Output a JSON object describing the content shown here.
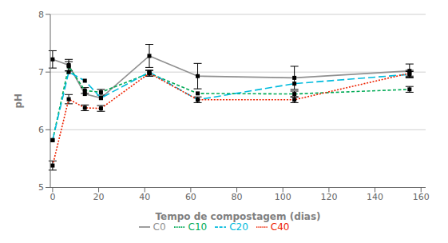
{
  "chart_data": {
    "type": "line",
    "xlabel": "Tempo de compostagem (dias)",
    "ylabel": "pH",
    "x": [
      0,
      7,
      14,
      21,
      42,
      63,
      105,
      155
    ],
    "series": [
      {
        "name": "C0",
        "color": "#909090",
        "line_style": "solid",
        "marker": "square",
        "values": [
          7.22,
          7.12,
          6.62,
          6.55,
          7.28,
          6.93,
          6.9,
          7.02
        ],
        "errors": [
          0.15,
          0.1,
          0.0,
          0.0,
          0.2,
          0.22,
          0.2,
          0.12
        ]
      },
      {
        "name": "C10",
        "color": "#00aa55",
        "line_style": "dashed",
        "marker": "square",
        "values": [
          5.82,
          7.1,
          6.68,
          6.65,
          6.98,
          6.63,
          6.62,
          6.7
        ],
        "errors": [
          0.0,
          0.08,
          0.05,
          0.05,
          0.05,
          0.0,
          0.05,
          0.05
        ]
      },
      {
        "name": "C20",
        "color": "#00bbdd",
        "line_style": "long_dashed",
        "marker": "square",
        "values": [
          5.82,
          7.0,
          6.85,
          6.55,
          7.0,
          6.52,
          6.8,
          6.96
        ],
        "errors": [
          0.0,
          0.0,
          0.0,
          0.0,
          0.0,
          0.0,
          0.0,
          0.05
        ]
      },
      {
        "name": "C40",
        "color": "#ee2200",
        "line_style": "dotted",
        "marker": "square",
        "values": [
          5.38,
          6.53,
          6.38,
          6.37,
          6.98,
          6.52,
          6.52,
          6.98
        ],
        "errors": [
          0.08,
          0.08,
          0.05,
          0.05,
          0.05,
          0.05,
          0.05,
          0.05
        ]
      }
    ],
    "xlim": [
      -1,
      162
    ],
    "ylim": [
      5,
      8
    ],
    "xticks": [
      0,
      20,
      40,
      60,
      80,
      100,
      120,
      140,
      160
    ],
    "yticks": [
      5,
      6,
      7,
      8
    ],
    "grid": "y",
    "legend": "bottom"
  }
}
